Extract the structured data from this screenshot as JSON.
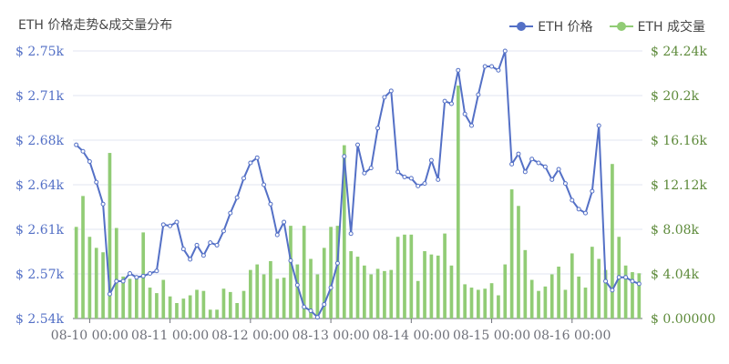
{
  "chart_data": {
    "type": "line+bar",
    "title": "ETH 价格走势&成交量分布",
    "legend_position": "top-right",
    "grid": true,
    "x_tick_labels": [
      "08-10 00:00",
      "08-11 00:00",
      "08-12 00:00",
      "08-13 00:00",
      "08-14 00:00",
      "08-15 00:00",
      "08-16 00:00"
    ],
    "y_left": {
      "ticks": [
        "$ 2.54k",
        "$ 2.57k",
        "$ 2.61k",
        "$ 2.64k",
        "$ 2.68k",
        "$ 2.71k",
        "$ 2.75k"
      ],
      "range": [
        2541,
        2749
      ]
    },
    "y_right": {
      "ticks": [
        "$ 0.00000",
        "$ 4.04k",
        "$ 8.08k",
        "$ 12.12k",
        "$ 16.16k",
        "$ 20.2k",
        "$ 24.24k"
      ],
      "range": [
        0,
        24240
      ]
    },
    "series": [
      {
        "name": "ETH 价格",
        "type": "line",
        "axis": "left",
        "color": "#5470c6",
        "values": [
          2676,
          2671,
          2663,
          2647,
          2630,
          2560,
          2570,
          2570,
          2576,
          2573,
          2574,
          2576,
          2578,
          2614,
          2613,
          2616,
          2595,
          2587,
          2598,
          2590,
          2600,
          2598,
          2609,
          2623,
          2635,
          2650,
          2662,
          2666,
          2645,
          2630,
          2606,
          2616,
          2586,
          2567,
          2550,
          2547,
          2542,
          2552,
          2565,
          2584,
          2667,
          2607,
          2676,
          2654,
          2658,
          2689,
          2713,
          2718,
          2655,
          2651,
          2650,
          2644,
          2646,
          2664,
          2649,
          2710,
          2708,
          2734,
          2700,
          2691,
          2715,
          2737,
          2737,
          2734,
          2749,
          2661,
          2669,
          2655,
          2665,
          2662,
          2659,
          2649,
          2657,
          2646,
          2633,
          2626,
          2623,
          2640,
          2691,
          2570,
          2563,
          2573,
          2573,
          2570,
          2568
        ]
      },
      {
        "name": "ETH 成交量",
        "type": "bar",
        "axis": "right",
        "color": "#91cc75",
        "values": [
          8300,
          11100,
          7400,
          6400,
          6000,
          15000,
          8200,
          3800,
          3600,
          3600,
          7800,
          2800,
          2300,
          3500,
          2000,
          1400,
          1800,
          2100,
          2600,
          2500,
          800,
          800,
          2700,
          2400,
          1400,
          2500,
          4400,
          4900,
          4000,
          5200,
          3600,
          3700,
          8400,
          4900,
          8400,
          5400,
          4000,
          6400,
          8300,
          8400,
          15700,
          6100,
          5600,
          4800,
          4000,
          4500,
          4300,
          4400,
          7400,
          7600,
          7600,
          3400,
          6100,
          5800,
          5700,
          7700,
          4800,
          21100,
          3100,
          2800,
          2600,
          2700,
          3200,
          2100,
          4900,
          11700,
          10200,
          6200,
          3500,
          2500,
          2900,
          4000,
          4700,
          2600,
          5900,
          3800,
          2800,
          6500,
          5400,
          4400,
          14000,
          7400,
          4800,
          4200,
          4100
        ]
      }
    ]
  }
}
